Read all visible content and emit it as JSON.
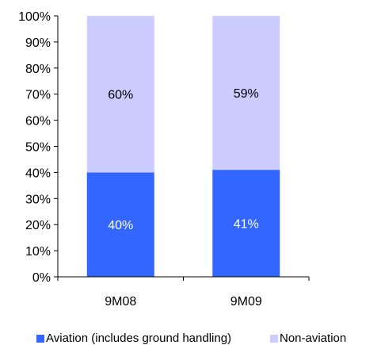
{
  "chart_data": {
    "type": "bar",
    "stacked": true,
    "categories": [
      "9M08",
      "9M09"
    ],
    "series": [
      {
        "name": "Aviation (includes ground handling)",
        "values": [
          40,
          41
        ],
        "labels": [
          "40%",
          "41%"
        ],
        "color": "#3366ff"
      },
      {
        "name": "Non-aviation",
        "values": [
          60,
          59
        ],
        "labels": [
          "60%",
          "59%"
        ],
        "color": "#ccccff"
      }
    ],
    "ylim": [
      0,
      100
    ],
    "yticks": [
      "0%",
      "10%",
      "20%",
      "30%",
      "40%",
      "50%",
      "60%",
      "70%",
      "80%",
      "90%",
      "100%"
    ],
    "grid": false,
    "legend_position": "bottom"
  }
}
